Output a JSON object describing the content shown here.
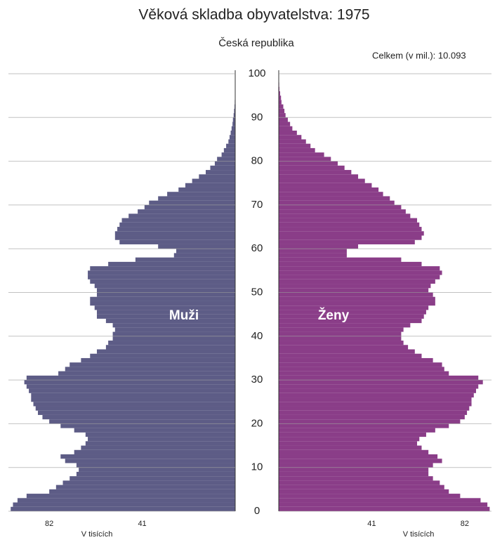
{
  "chart_data": {
    "type": "pyramid",
    "title": "Věková skladba obyvatelstva: 1975",
    "subtitle": "Česká republika",
    "total_label": "Celkem (v mil.): 10.093",
    "xlabel": "V tisících",
    "x": [
      0,
      1,
      2,
      3,
      4,
      5,
      6,
      7,
      8,
      9,
      10,
      11,
      12,
      13,
      14,
      15,
      16,
      17,
      18,
      19,
      20,
      21,
      22,
      23,
      24,
      25,
      26,
      27,
      28,
      29,
      30,
      31,
      32,
      33,
      34,
      35,
      36,
      37,
      38,
      39,
      40,
      41,
      42,
      43,
      44,
      45,
      46,
      47,
      48,
      49,
      50,
      51,
      52,
      53,
      54,
      55,
      56,
      57,
      58,
      59,
      60,
      61,
      62,
      63,
      64,
      65,
      66,
      67,
      68,
      69,
      70,
      71,
      72,
      73,
      74,
      75,
      76,
      77,
      78,
      79,
      80,
      81,
      82,
      83,
      84,
      85,
      86,
      87,
      88,
      89,
      90,
      91,
      92,
      93,
      94,
      95,
      96,
      97,
      98,
      99,
      100
    ],
    "series": [
      {
        "name": "Muži",
        "color": "#5d5c86",
        "values": [
          99,
          98,
          96,
          92,
          82,
          79,
          76,
          73,
          70,
          69,
          70,
          75,
          77,
          71,
          68,
          66,
          65,
          66,
          71,
          77,
          82,
          85,
          87,
          88,
          89,
          90,
          90,
          91,
          92,
          93,
          92,
          78,
          75,
          73,
          68,
          64,
          61,
          57,
          56,
          54,
          54,
          53,
          54,
          57,
          61,
          61,
          62,
          64,
          64,
          61,
          61,
          62,
          64,
          65,
          65,
          64,
          56,
          44,
          27,
          26,
          34,
          51,
          53,
          53,
          52,
          51,
          50,
          47,
          43,
          40,
          38,
          34,
          30,
          25,
          22,
          19,
          16,
          13,
          11,
          9,
          8,
          6,
          5,
          4,
          3,
          2.5,
          2,
          1.6,
          1.2,
          1,
          0.7,
          0.5,
          0.3,
          0.2,
          0.1,
          0.1,
          0,
          0,
          0,
          0,
          0
        ]
      },
      {
        "name": "Ženy",
        "color": "#8a3d88",
        "values": [
          93,
          92,
          89,
          80,
          75,
          73,
          71,
          68,
          66,
          66,
          68,
          72,
          70,
          66,
          63,
          61,
          62,
          65,
          69,
          75,
          80,
          82,
          83,
          84,
          85,
          85,
          86,
          87,
          88,
          90,
          88,
          75,
          73,
          72,
          68,
          63,
          60,
          57,
          55,
          54,
          54,
          55,
          58,
          63,
          64,
          65,
          66,
          69,
          69,
          68,
          66,
          67,
          69,
          71,
          72,
          71,
          63,
          54,
          30,
          30,
          35,
          60,
          63,
          64,
          63,
          62,
          61,
          58,
          56,
          54,
          51,
          49,
          46,
          44,
          41,
          38,
          35,
          32,
          29,
          26,
          23,
          20,
          16,
          14,
          12,
          10,
          8,
          6,
          5,
          4,
          3,
          2.5,
          2,
          1.2,
          1,
          0.6,
          0.3,
          0.2,
          0.1,
          0.1,
          0
        ]
      }
    ],
    "xlim": [
      0,
      100
    ],
    "xticks": [
      41,
      82
    ],
    "ylim": [
      0,
      100
    ],
    "yticks": [
      0,
      10,
      20,
      30,
      40,
      50,
      60,
      70,
      80,
      90,
      100
    ],
    "grid": true
  }
}
